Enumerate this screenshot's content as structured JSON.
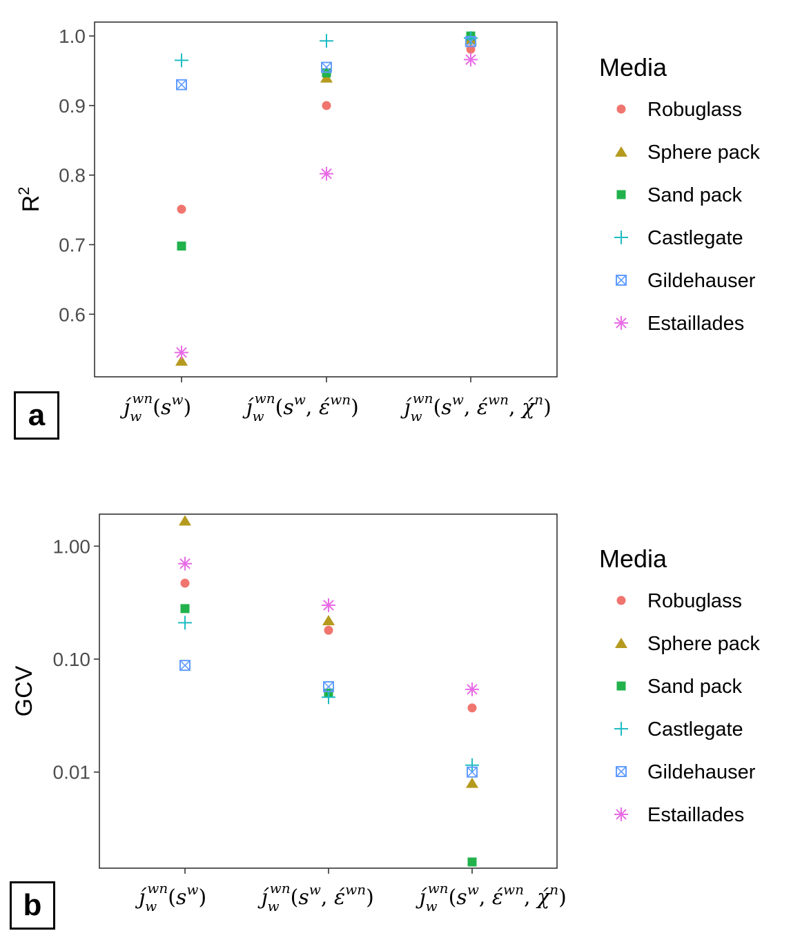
{
  "colors": {
    "Robuglass": "#F0756E",
    "Sphere pack": "#B59A1E",
    "Sand pack": "#22B24C",
    "Castlegate": "#1DBCC2",
    "Gildehauser": "#619CFF",
    "Estaillades": "#E86AE6"
  },
  "chart_data": [
    {
      "type": "scatter",
      "panel_label": "a",
      "ylabel": "R",
      "ylabel_superscript": "2",
      "yscale": "linear",
      "ylim": [
        0.51,
        1.02
      ],
      "yticks": [
        "0.6",
        "0.7",
        "0.8",
        "0.9",
        "1.0"
      ],
      "categories": [
        "j_w^wn(s^w)",
        "j_w^wn(s^w, ε^wn)",
        "j_w^wn(s^w, ε^wn, χ^n)"
      ],
      "legend": {
        "title": "Media",
        "entries": [
          "Robuglass",
          "Sphere pack",
          "Sand pack",
          "Castlegate",
          "Gildehauser",
          "Estaillades"
        ],
        "position": "right"
      },
      "series": [
        {
          "name": "Robuglass",
          "marker": "circle",
          "values": [
            0.751,
            0.9,
            0.981
          ]
        },
        {
          "name": "Sphere pack",
          "marker": "triangle",
          "values": [
            0.533,
            0.94,
            0.995
          ]
        },
        {
          "name": "Sand pack",
          "marker": "square",
          "values": [
            0.698,
            0.947,
            1.0
          ]
        },
        {
          "name": "Castlegate",
          "marker": "plus",
          "values": [
            0.965,
            0.993,
            0.997
          ]
        },
        {
          "name": "Gildehauser",
          "marker": "boxx",
          "values": [
            0.93,
            0.955,
            0.992
          ]
        },
        {
          "name": "Estaillades",
          "marker": "asterisk",
          "values": [
            0.545,
            0.802,
            0.966
          ]
        }
      ]
    },
    {
      "type": "scatter",
      "panel_label": "b",
      "ylabel": "GCV",
      "ylabel_superscript": "",
      "yscale": "log",
      "ylim": [
        0.00141,
        1.92
      ],
      "yticks": [
        "0.01",
        "0.10",
        "1.00"
      ],
      "categories": [
        "j_w^wn(s^w)",
        "j_w^wn(s^w, ε^wn)",
        "j_w^wn(s^w, ε^wn, χ^n)"
      ],
      "legend": {
        "title": "Media",
        "entries": [
          "Robuglass",
          "Sphere pack",
          "Sand pack",
          "Castlegate",
          "Gildehauser",
          "Estaillades"
        ],
        "position": "right"
      },
      "series": [
        {
          "name": "Robuglass",
          "marker": "circle",
          "values": [
            0.47,
            0.18,
            0.037
          ]
        },
        {
          "name": "Sphere pack",
          "marker": "triangle",
          "values": [
            1.68,
            0.22,
            0.008
          ]
        },
        {
          "name": "Sand pack",
          "marker": "square",
          "values": [
            0.28,
            0.05,
            0.0016
          ]
        },
        {
          "name": "Castlegate",
          "marker": "plus",
          "values": [
            0.21,
            0.046,
            0.0115
          ]
        },
        {
          "name": "Gildehauser",
          "marker": "boxx",
          "values": [
            0.088,
            0.057,
            0.01
          ]
        },
        {
          "name": "Estaillades",
          "marker": "asterisk",
          "values": [
            0.7,
            0.3,
            0.054
          ]
        }
      ]
    }
  ]
}
